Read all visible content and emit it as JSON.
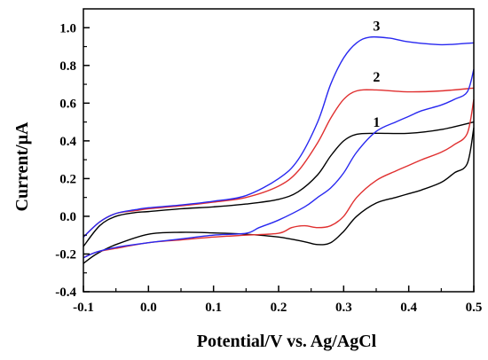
{
  "chart_data": {
    "type": "line",
    "xlabel": "Potential/V vs. Ag/AgCl",
    "ylabel": "Current/μA",
    "xlim": [
      -0.1,
      0.5
    ],
    "ylim": [
      -0.4,
      1.1
    ],
    "xticks": [
      "-0.1",
      "0.0",
      "0.1",
      "0.2",
      "0.3",
      "0.4",
      "0.5"
    ],
    "xtick_values": [
      -0.1,
      0.0,
      0.1,
      0.2,
      0.3,
      0.4,
      0.5
    ],
    "yticks": [
      "-0.4",
      "-0.2",
      "0.0",
      "0.2",
      "0.4",
      "0.6",
      "0.8",
      "1.0"
    ],
    "ytick_values": [
      -0.4,
      -0.2,
      0.0,
      0.2,
      0.4,
      0.6,
      0.8,
      1.0
    ],
    "grid": false,
    "legend": "none",
    "series": [
      {
        "label": "1",
        "color": "#000000",
        "label_at": [
          0.33,
          0.48
        ],
        "forward": [
          [
            -0.1,
            -0.16
          ],
          [
            -0.075,
            -0.05
          ],
          [
            -0.05,
            0.0
          ],
          [
            -0.02,
            0.02
          ],
          [
            0.0,
            0.025
          ],
          [
            0.05,
            0.04
          ],
          [
            0.1,
            0.05
          ],
          [
            0.15,
            0.065
          ],
          [
            0.2,
            0.09
          ],
          [
            0.23,
            0.13
          ],
          [
            0.26,
            0.22
          ],
          [
            0.28,
            0.32
          ],
          [
            0.3,
            0.4
          ],
          [
            0.32,
            0.435
          ],
          [
            0.35,
            0.44
          ],
          [
            0.4,
            0.44
          ],
          [
            0.45,
            0.46
          ],
          [
            0.5,
            0.5
          ]
        ],
        "reverse": [
          [
            0.5,
            0.47
          ],
          [
            0.49,
            0.28
          ],
          [
            0.47,
            0.23
          ],
          [
            0.45,
            0.18
          ],
          [
            0.42,
            0.14
          ],
          [
            0.4,
            0.12
          ],
          [
            0.38,
            0.1
          ],
          [
            0.35,
            0.07
          ],
          [
            0.32,
            0.0
          ],
          [
            0.3,
            -0.08
          ],
          [
            0.28,
            -0.14
          ],
          [
            0.26,
            -0.15
          ],
          [
            0.24,
            -0.135
          ],
          [
            0.2,
            -0.11
          ],
          [
            0.15,
            -0.095
          ],
          [
            0.1,
            -0.088
          ],
          [
            0.05,
            -0.085
          ],
          [
            0.0,
            -0.095
          ],
          [
            -0.05,
            -0.15
          ],
          [
            -0.08,
            -0.2
          ],
          [
            -0.1,
            -0.25
          ]
        ]
      },
      {
        "label": "2",
        "color": "#e03030",
        "label_at": [
          0.33,
          0.72
        ],
        "forward": [
          [
            -0.1,
            -0.11
          ],
          [
            -0.075,
            -0.03
          ],
          [
            -0.05,
            0.015
          ],
          [
            -0.02,
            0.03
          ],
          [
            0.0,
            0.04
          ],
          [
            0.05,
            0.055
          ],
          [
            0.1,
            0.075
          ],
          [
            0.15,
            0.1
          ],
          [
            0.2,
            0.16
          ],
          [
            0.23,
            0.24
          ],
          [
            0.26,
            0.39
          ],
          [
            0.28,
            0.52
          ],
          [
            0.3,
            0.62
          ],
          [
            0.32,
            0.665
          ],
          [
            0.35,
            0.67
          ],
          [
            0.4,
            0.66
          ],
          [
            0.45,
            0.665
          ],
          [
            0.5,
            0.68
          ]
        ],
        "reverse": [
          [
            0.5,
            0.62
          ],
          [
            0.49,
            0.44
          ],
          [
            0.47,
            0.38
          ],
          [
            0.45,
            0.34
          ],
          [
            0.42,
            0.3
          ],
          [
            0.4,
            0.27
          ],
          [
            0.38,
            0.24
          ],
          [
            0.35,
            0.19
          ],
          [
            0.32,
            0.1
          ],
          [
            0.3,
            0.0
          ],
          [
            0.28,
            -0.05
          ],
          [
            0.26,
            -0.06
          ],
          [
            0.24,
            -0.05
          ],
          [
            0.22,
            -0.06
          ],
          [
            0.2,
            -0.09
          ],
          [
            0.15,
            -0.1
          ],
          [
            0.1,
            -0.11
          ],
          [
            0.05,
            -0.125
          ],
          [
            0.0,
            -0.14
          ],
          [
            -0.05,
            -0.17
          ],
          [
            -0.08,
            -0.19
          ],
          [
            -0.1,
            -0.22
          ]
        ]
      },
      {
        "label": "3",
        "color": "#2828f0",
        "label_at": [
          0.33,
          0.99
        ],
        "forward": [
          [
            -0.1,
            -0.11
          ],
          [
            -0.075,
            -0.03
          ],
          [
            -0.05,
            0.015
          ],
          [
            -0.02,
            0.035
          ],
          [
            0.0,
            0.045
          ],
          [
            0.05,
            0.06
          ],
          [
            0.1,
            0.08
          ],
          [
            0.15,
            0.11
          ],
          [
            0.2,
            0.2
          ],
          [
            0.23,
            0.3
          ],
          [
            0.26,
            0.5
          ],
          [
            0.28,
            0.7
          ],
          [
            0.3,
            0.84
          ],
          [
            0.32,
            0.92
          ],
          [
            0.34,
            0.95
          ],
          [
            0.37,
            0.945
          ],
          [
            0.4,
            0.925
          ],
          [
            0.45,
            0.91
          ],
          [
            0.5,
            0.92
          ]
        ],
        "reverse": [
          [
            0.5,
            0.78
          ],
          [
            0.49,
            0.66
          ],
          [
            0.47,
            0.62
          ],
          [
            0.45,
            0.59
          ],
          [
            0.42,
            0.56
          ],
          [
            0.4,
            0.53
          ],
          [
            0.38,
            0.5
          ],
          [
            0.35,
            0.45
          ],
          [
            0.32,
            0.34
          ],
          [
            0.3,
            0.23
          ],
          [
            0.28,
            0.15
          ],
          [
            0.26,
            0.1
          ],
          [
            0.24,
            0.05
          ],
          [
            0.2,
            -0.02
          ],
          [
            0.17,
            -0.06
          ],
          [
            0.15,
            -0.09
          ],
          [
            0.1,
            -0.1
          ],
          [
            0.05,
            -0.12
          ],
          [
            0.0,
            -0.14
          ],
          [
            -0.05,
            -0.165
          ],
          [
            -0.08,
            -0.19
          ],
          [
            -0.1,
            -0.22
          ]
        ]
      }
    ]
  }
}
